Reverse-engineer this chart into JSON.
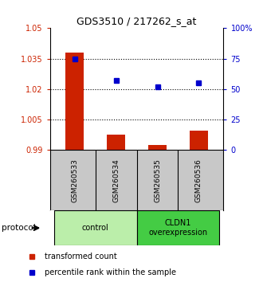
{
  "title": "GDS3510 / 217262_s_at",
  "samples": [
    "GSM260533",
    "GSM260534",
    "GSM260535",
    "GSM260536"
  ],
  "bar_values": [
    1.038,
    0.9975,
    0.9925,
    0.9995
  ],
  "bar_baseline": 0.99,
  "bar_color": "#cc2200",
  "dot_values": [
    75,
    57,
    52,
    55
  ],
  "dot_color": "#0000cc",
  "left_ylim": [
    0.99,
    1.05
  ],
  "left_yticks": [
    0.99,
    1.005,
    1.02,
    1.035,
    1.05
  ],
  "left_ytick_labels": [
    "0.99",
    "1.005",
    "1.02",
    "1.035",
    "1.05"
  ],
  "right_ylim": [
    0,
    100
  ],
  "right_yticks": [
    0,
    25,
    50,
    75,
    100
  ],
  "right_ytick_labels": [
    "0",
    "25",
    "50",
    "75",
    "100%"
  ],
  "hline_values": [
    1.035,
    1.02,
    1.005
  ],
  "groups": [
    {
      "label": "control",
      "samples": [
        0,
        1
      ],
      "color": "#bbeeaa"
    },
    {
      "label": "CLDN1\noverexpression",
      "samples": [
        2,
        3
      ],
      "color": "#44cc44"
    }
  ],
  "protocol_label": "protocol",
  "legend_bar_label": "transformed count",
  "legend_dot_label": "percentile rank within the sample",
  "tick_color_left": "#cc2200",
  "tick_color_right": "#0000cc",
  "background_color": "#ffffff",
  "plot_bg_color": "#ffffff",
  "sample_box_color": "#c8c8c8"
}
